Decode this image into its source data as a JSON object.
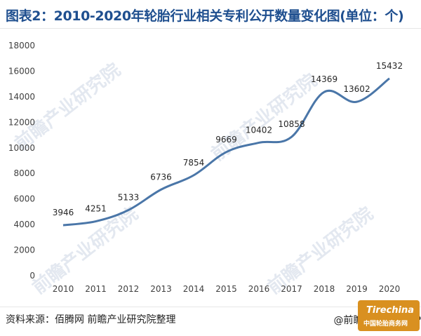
{
  "title": "图表2：2010-2020年轮胎行业相关专利公开数量变化图(单位：个)",
  "source": "资料来源：佰腾网 前瞻产业研究院整理",
  "credit": "@前瞻经济学人APP",
  "watermark": "前瞻产业研究院",
  "logo": {
    "main": "Tirechina",
    "sub": "中国轮胎商务网",
    "color": "#d99020"
  },
  "chart_data": {
    "type": "line",
    "title": "",
    "xlabel": "",
    "ylabel": "",
    "categories": [
      "2010",
      "2011",
      "2012",
      "2013",
      "2014",
      "2015",
      "2016",
      "2017",
      "2018",
      "2019",
      "2020"
    ],
    "series": [
      {
        "name": "",
        "values": [
          3946,
          4251,
          5133,
          6736,
          7854,
          9669,
          10402,
          10858,
          14369,
          13602,
          15432
        ],
        "color": "#4a76a8"
      }
    ],
    "y_ticks": [
      "0",
      "2000",
      "4000",
      "6000",
      "8000",
      "10000",
      "12000",
      "14000",
      "16000",
      "18000"
    ],
    "ylim": [
      0,
      18000
    ],
    "grid": false,
    "legend": "none",
    "smooth": true
  }
}
